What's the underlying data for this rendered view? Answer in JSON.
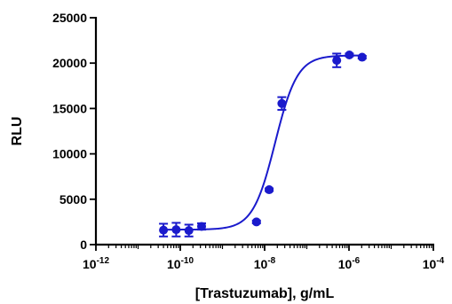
{
  "chart_data": {
    "type": "scatter",
    "title": "",
    "xlabel": "[Trastuzumab], g/mL",
    "ylabel": "RLU",
    "xscale": "log",
    "xlim": [
      1e-12,
      0.0001
    ],
    "ylim": [
      0,
      25000
    ],
    "x_tick_labels": [
      {
        "base": "10",
        "exp": "-12",
        "value": 1e-12
      },
      {
        "base": "10",
        "exp": "-10",
        "value": 1e-10
      },
      {
        "base": "10",
        "exp": "-8",
        "value": 1e-08
      },
      {
        "base": "10",
        "exp": "-6",
        "value": 1e-06
      },
      {
        "base": "10",
        "exp": "-4",
        "value": 0.0001
      }
    ],
    "y_tick_labels": [
      "0",
      "5000",
      "10000",
      "15000",
      "20000",
      "25000"
    ],
    "y_tick_values": [
      0,
      5000,
      10000,
      15000,
      20000,
      25000
    ],
    "series": [
      {
        "color": "#1a1acc",
        "points": [
          {
            "x": 4e-11,
            "y": 1600,
            "err": 700
          },
          {
            "x": 8e-11,
            "y": 1650,
            "err": 750
          },
          {
            "x": 1.6e-10,
            "y": 1550,
            "err": 650
          },
          {
            "x": 3.2e-10,
            "y": 2000,
            "err": 350
          },
          {
            "x": 6.4e-09,
            "y": 2500,
            "err": 150
          },
          {
            "x": 1.28e-08,
            "y": 6050,
            "err": 150
          },
          {
            "x": 2.56e-08,
            "y": 15550,
            "err": 700
          },
          {
            "x": 5.12e-07,
            "y": 20300,
            "err": 750
          },
          {
            "x": 1.02e-06,
            "y": 20900,
            "err": 150
          },
          {
            "x": 2.05e-06,
            "y": 20650,
            "err": 150
          }
        ],
        "fit": {
          "model": "4PL",
          "bottom": 1650,
          "top": 20850,
          "logEC50": -7.75,
          "hill": 1.65
        }
      }
    ],
    "grid": false,
    "legend": "none"
  }
}
